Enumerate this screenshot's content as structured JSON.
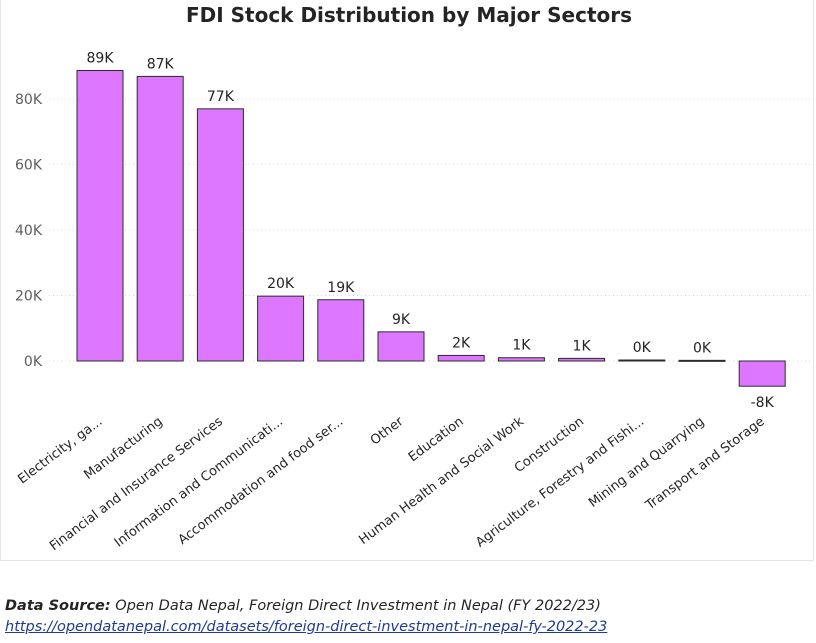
{
  "chart_data": {
    "type": "bar",
    "title": "FDI Stock Distribution by Major Sectors",
    "xlabel": "",
    "ylabel": "",
    "categories": [
      "Electricity, ga...",
      "Manufacturing",
      "Financial and Insurance Services",
      "Information and Communicati...",
      "Accommodation and food ser...",
      "Other",
      "Education",
      "Human Health and Social Work",
      "Construction",
      "Agriculture, Forestry and Fishi...",
      "Mining and Quarrying",
      "Transport and Storage"
    ],
    "values": [
      88700,
      86900,
      77000,
      19800,
      18700,
      8900,
      1700,
      1000,
      800,
      300,
      200,
      -7700
    ],
    "data_labels": [
      "89K",
      "87K",
      "77K",
      "20K",
      "19K",
      "9K",
      "2K",
      "1K",
      "1K",
      "0K",
      "0K",
      "-8K"
    ],
    "y_ticks": [
      0,
      20000,
      40000,
      60000,
      80000
    ],
    "y_tick_labels": [
      "0K",
      "20K",
      "40K",
      "60K",
      "80K"
    ],
    "ylim": [
      -10000,
      95000
    ],
    "grid": true,
    "legend": "none",
    "colors": {
      "bar_fill": "#dd77ff",
      "bar_stroke": "#2b2b2b",
      "grid": "#d9d9d9",
      "text": "#252423"
    }
  },
  "footer": {
    "source_label": "Data Source:",
    "source_text": " Open Data Nepal, Foreign Direct Investment in Nepal (FY 2022/23)",
    "source_url": "https://opendatanepal.com/datasets/foreign-direct-investment-in-nepal-fy-2022-23"
  }
}
